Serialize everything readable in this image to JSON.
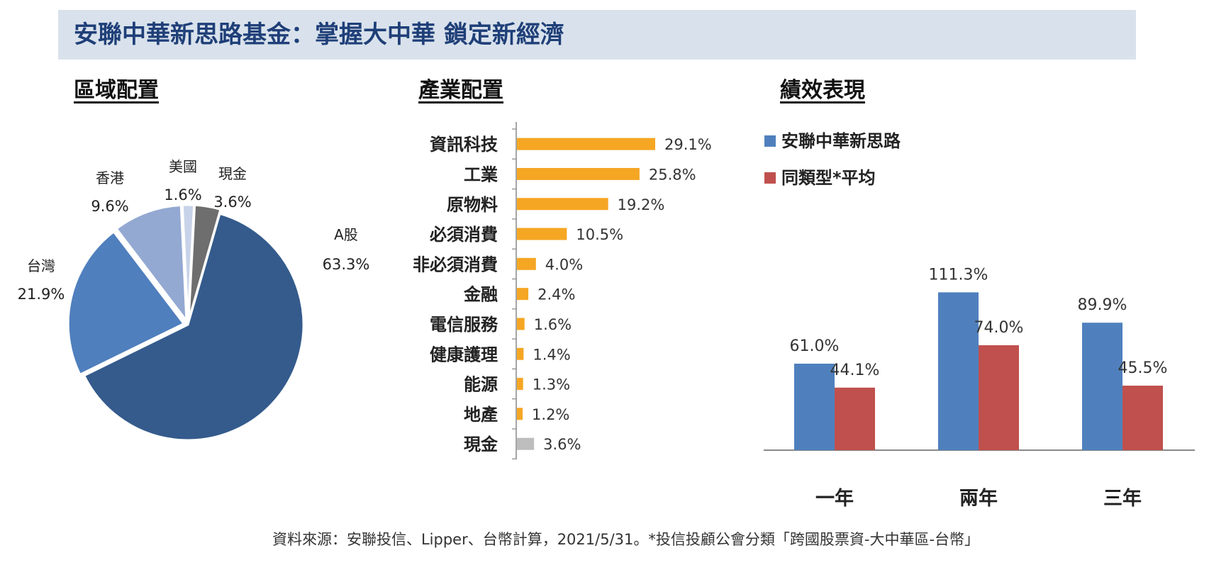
{
  "header": {
    "title": "安聯中華新思路基金：掌握大中華  鎖定新經濟"
  },
  "sections": {
    "region": "區域配置",
    "industry": "產業配置",
    "performance": "績效表現"
  },
  "chart_data": [
    {
      "type": "pie",
      "labels": [
        "A股",
        "台灣",
        "香港",
        "美國",
        "現金"
      ],
      "values": [
        63.3,
        21.9,
        9.6,
        1.6,
        3.6
      ],
      "value_labels": [
        "63.3%",
        "21.9%",
        "9.6%",
        "1.6%",
        "3.6%"
      ],
      "colors": [
        "#345b8c",
        "#4f7fbd",
        "#93a9d2",
        "#c7d3e8",
        "#6e6e6e"
      ]
    },
    {
      "type": "bar",
      "orientation": "horizontal",
      "categories": [
        "資訊科技",
        "工業",
        "原物料",
        "必須消費",
        "非必須消費",
        "金融",
        "電信服務",
        "健康護理",
        "能源",
        "地產",
        "現金"
      ],
      "values": [
        29.1,
        25.8,
        19.2,
        10.5,
        4.0,
        2.4,
        1.6,
        1.4,
        1.3,
        1.2,
        3.6
      ],
      "value_labels": [
        "29.1%",
        "25.8%",
        "19.2%",
        "10.5%",
        "4.0%",
        "2.4%",
        "1.6%",
        "1.4%",
        "1.3%",
        "1.2%",
        "3.6%"
      ],
      "colors": [
        "#f5a623",
        "#f5a623",
        "#f5a623",
        "#f5a623",
        "#f5a623",
        "#f5a623",
        "#f5a623",
        "#f5a623",
        "#f5a623",
        "#f5a623",
        "#bdbdbd"
      ]
    },
    {
      "type": "bar",
      "categories": [
        "一年",
        "兩年",
        "三年"
      ],
      "series": [
        {
          "name": "安聯中華新思路",
          "values": [
            61.0,
            111.3,
            89.9
          ],
          "labels": [
            "61.0%",
            "111.3%",
            "89.9%"
          ],
          "color": "#4f80bd"
        },
        {
          "name": "同類型*平均",
          "values": [
            44.1,
            74.0,
            45.5
          ],
          "labels": [
            "44.1%",
            "74.0%",
            "45.5%"
          ],
          "color": "#c0504d"
        }
      ],
      "legend": "top-left"
    }
  ],
  "footer": {
    "source": "資料來源：安聯投信、Lipper、台幣計算，2021/5/31。*投信投顧公會分類「跨國股票資-大中華區-台幣」"
  }
}
